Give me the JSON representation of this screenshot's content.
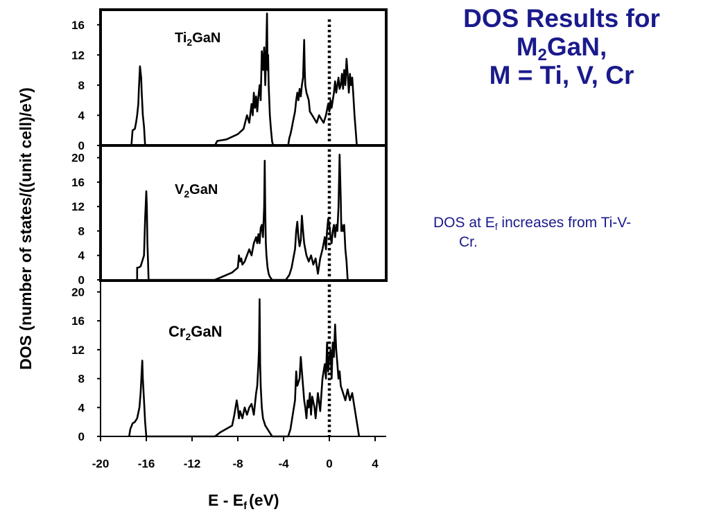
{
  "slide": {
    "title_line1": "DOS Results for",
    "title_line2_main": "M",
    "title_line2_sub": "2",
    "title_line2_rest": "GaN,",
    "title_line3": "M = Ti, V, Cr"
  },
  "note": {
    "prefix": "DOS at E",
    "sub": "f",
    "suffix": " increases from Ti-V-",
    "line2": "Cr."
  },
  "chart_data": {
    "type": "line",
    "ylabel": "DOS (number of states/((unit cell)/eV)",
    "xlabel_main": "E - E",
    "xlabel_sub": "f",
    "xlabel_unit": "(eV)",
    "xlim": [
      -20,
      5
    ],
    "x_ticks": [
      "-20",
      "-16",
      "-12",
      "-8",
      "-4",
      "0",
      "4"
    ],
    "x_tick_values": [
      -20,
      -16,
      -12,
      -8,
      -4,
      0,
      4
    ],
    "fermi_level_line": 0,
    "grid": false,
    "panels": [
      {
        "label_main": "Ti",
        "label_sub": "2",
        "label_rest": "GaN",
        "ylim": [
          0,
          18
        ],
        "y_ticks": [
          "0",
          "4",
          "8",
          "12",
          "16"
        ],
        "y_tick_values": [
          0,
          4,
          8,
          12,
          16
        ],
        "series": [
          {
            "x": [
              -17.3,
              -17.2,
              -17.0,
              -16.9,
              -16.8,
              -16.7,
              -16.65,
              -16.55,
              -16.45,
              -16.4,
              -16.3,
              -16.2,
              -16.1,
              -16.0,
              -10.0,
              -9.8,
              -9.0,
              -8.0,
              -7.5,
              -7.2,
              -7.0,
              -6.8,
              -6.7,
              -6.6,
              -6.5,
              -6.4,
              -6.3,
              -6.2,
              -6.1,
              -6.0,
              -5.9,
              -5.8,
              -5.7,
              -5.6,
              -5.5,
              -5.45,
              -5.4,
              -5.35,
              -5.3,
              -5.2,
              -5.1,
              -5.0,
              -4.9,
              -4.8,
              -4.5,
              -3.6,
              -3.5,
              -3.4,
              -3.3,
              -3.2,
              -3.0,
              -2.9,
              -2.8,
              -2.7,
              -2.6,
              -2.5,
              -2.4,
              -2.3,
              -2.2,
              -2.15,
              -2.1,
              -2.0,
              -1.9,
              -1.8,
              -1.7,
              -1.5,
              -1.3,
              -1.1,
              -0.9,
              -0.7,
              -0.5,
              -0.3,
              -0.1,
              0.0,
              0.1,
              0.2,
              0.4,
              0.5,
              0.6,
              0.8,
              0.9,
              1.0,
              1.1,
              1.2,
              1.3,
              1.4,
              1.5,
              1.6,
              1.7,
              1.8,
              1.9,
              2.0,
              2.1,
              2.2,
              2.3,
              2.4
            ],
            "y": [
              0,
              2.0,
              2.2,
              3.0,
              4.0,
              5.5,
              7.5,
              10.5,
              9.0,
              7.0,
              4.0,
              2.5,
              0,
              0,
              0,
              0.6,
              0.8,
              1.5,
              2.2,
              4.0,
              3.0,
              5.5,
              4.0,
              7.0,
              5.0,
              6.5,
              4.5,
              6.5,
              8.0,
              6.0,
              12.5,
              10.0,
              13.0,
              8.0,
              14.0,
              17.5,
              10.0,
              12.0,
              8.0,
              4.0,
              2.0,
              0.5,
              0,
              0,
              0,
              0,
              1.0,
              1.5,
              2.2,
              3.0,
              4.5,
              6.0,
              7.0,
              6.0,
              7.5,
              6.5,
              8.0,
              9.0,
              14.0,
              10.0,
              8.0,
              7.0,
              6.5,
              6.0,
              4.5,
              4.0,
              3.5,
              3.0,
              4.0,
              3.5,
              3.0,
              4.0,
              5.5,
              4.5,
              6.0,
              5.0,
              7.0,
              8.5,
              7.0,
              9.0,
              7.5,
              8.0,
              9.5,
              7.5,
              10.0,
              8.0,
              11.5,
              9.5,
              7.0,
              9.5,
              8.0,
              9.0,
              6.5,
              4.0,
              2.0,
              0
            ]
          }
        ]
      },
      {
        "label_main": "V",
        "label_sub": "2",
        "label_rest": "GaN",
        "ylim": [
          0,
          22
        ],
        "y_ticks": [
          "0",
          "4",
          "8",
          "12",
          "16",
          "20"
        ],
        "y_tick_values": [
          0,
          4,
          8,
          12,
          16,
          20
        ],
        "series": [
          {
            "x": [
              -16.8,
              -16.8,
              -16.7,
              -16.5,
              -16.2,
              -16.1,
              -16.0,
              -15.95,
              -15.9,
              -15.85,
              -15.8,
              -15.7,
              -10.0,
              -9.5,
              -8.5,
              -8.0,
              -7.9,
              -7.8,
              -7.7,
              -7.6,
              -7.4,
              -7.2,
              -7.0,
              -6.8,
              -6.6,
              -6.4,
              -6.3,
              -6.2,
              -6.1,
              -6.0,
              -5.9,
              -5.8,
              -5.7,
              -5.65,
              -5.6,
              -5.55,
              -5.5,
              -5.4,
              -5.3,
              -5.2,
              -5.0,
              -4.8,
              -4.5,
              -3.8,
              -3.5,
              -3.3,
              -3.2,
              -3.0,
              -2.9,
              -2.8,
              -2.7,
              -2.6,
              -2.5,
              -2.4,
              -2.3,
              -2.2,
              -2.1,
              -2.0,
              -1.8,
              -1.6,
              -1.4,
              -1.2,
              -1.0,
              -0.8,
              -0.6,
              -0.5,
              -0.4,
              -0.3,
              -0.2,
              -0.1,
              0.0,
              0.1,
              0.2,
              0.3,
              0.4,
              0.5,
              0.6,
              0.7,
              0.8,
              0.9,
              1.0,
              1.05,
              1.1,
              1.2,
              1.3,
              1.4,
              1.5,
              1.6
            ],
            "y": [
              0,
              2.0,
              2.0,
              2.2,
              4.0,
              10.0,
              14.5,
              12.0,
              6.0,
              3.0,
              0,
              0,
              0,
              0.4,
              1.2,
              2.0,
              4.0,
              3.0,
              3.5,
              2.5,
              3.0,
              4.0,
              5.0,
              4.0,
              6.0,
              7.0,
              6.0,
              7.5,
              6.0,
              8.5,
              9.0,
              7.0,
              12.0,
              19.5,
              11.0,
              6.0,
              4.0,
              2.0,
              1.0,
              0.5,
              0,
              0,
              0,
              0,
              0.8,
              2.0,
              3.0,
              5.0,
              8.0,
              9.5,
              7.0,
              5.5,
              6.5,
              10.5,
              8.0,
              6.0,
              5.0,
              4.0,
              3.0,
              4.0,
              2.5,
              3.5,
              1.0,
              3.5,
              5.0,
              6.0,
              7.0,
              5.0,
              8.0,
              10.0,
              9.0,
              7.0,
              6.0,
              8.0,
              9.0,
              7.0,
              9.0,
              8.0,
              12.0,
              20.5,
              13.0,
              8.0,
              9.0,
              8.0,
              9.0,
              5.0,
              3.0,
              0
            ]
          }
        ]
      },
      {
        "label_main": "Cr",
        "label_sub": "2",
        "label_rest": "GaN",
        "ylim": [
          0,
          21
        ],
        "y_ticks": [
          "0",
          "4",
          "8",
          "12",
          "16",
          "20"
        ],
        "y_tick_values": [
          0,
          4,
          8,
          12,
          16,
          20
        ],
        "series": [
          {
            "x": [
              -17.5,
              -17.4,
              -17.2,
              -17.0,
              -16.8,
              -16.6,
              -16.5,
              -16.4,
              -16.35,
              -16.3,
              -16.2,
              -16.1,
              -16.0,
              -10.0,
              -9.5,
              -8.5,
              -8.3,
              -8.1,
              -8.0,
              -7.9,
              -7.8,
              -7.6,
              -7.4,
              -7.2,
              -7.0,
              -6.8,
              -6.6,
              -6.4,
              -6.3,
              -6.2,
              -6.15,
              -6.1,
              -6.05,
              -6.0,
              -5.9,
              -5.8,
              -5.6,
              -5.4,
              -5.2,
              -5.0,
              -4.8,
              -3.6,
              -3.4,
              -3.2,
              -3.0,
              -2.9,
              -2.8,
              -2.6,
              -2.5,
              -2.4,
              -2.2,
              -2.1,
              -2.0,
              -1.9,
              -1.8,
              -1.7,
              -1.6,
              -1.5,
              -1.3,
              -1.2,
              -1.0,
              -0.8,
              -0.6,
              -0.4,
              -0.3,
              -0.2,
              -0.1,
              0.0,
              0.1,
              0.2,
              0.3,
              0.4,
              0.5,
              0.6,
              0.7,
              0.8,
              0.9,
              1.0,
              1.2,
              1.4,
              1.6,
              1.8,
              2.0,
              2.2,
              2.4,
              2.6
            ],
            "y": [
              0,
              1.0,
              1.8,
              2.0,
              2.5,
              4.0,
              6.0,
              9.0,
              10.5,
              8.0,
              5.0,
              2.0,
              0,
              0,
              0.6,
              1.5,
              3.0,
              5.0,
              4.0,
              2.5,
              3.5,
              2.5,
              4.0,
              3.0,
              4.0,
              4.5,
              3.0,
              6.0,
              7.0,
              10.0,
              12.0,
              19.0,
              10.0,
              7.0,
              4.0,
              2.5,
              1.5,
              1.0,
              0.5,
              0,
              0,
              0,
              1.0,
              3.0,
              5.0,
              9.0,
              7.0,
              8.0,
              11.0,
              9.0,
              5.0,
              4.0,
              2.5,
              5.0,
              4.0,
              6.0,
              3.0,
              5.5,
              4.0,
              2.5,
              6.0,
              3.5,
              8.0,
              10.0,
              8.0,
              13.0,
              9.0,
              11.0,
              12.0,
              8.0,
              13.0,
              11.0,
              15.5,
              12.0,
              10.0,
              8.0,
              9.0,
              7.0,
              6.0,
              5.0,
              6.5,
              5.0,
              6.0,
              4.0,
              2.0,
              0
            ]
          }
        ]
      }
    ]
  }
}
